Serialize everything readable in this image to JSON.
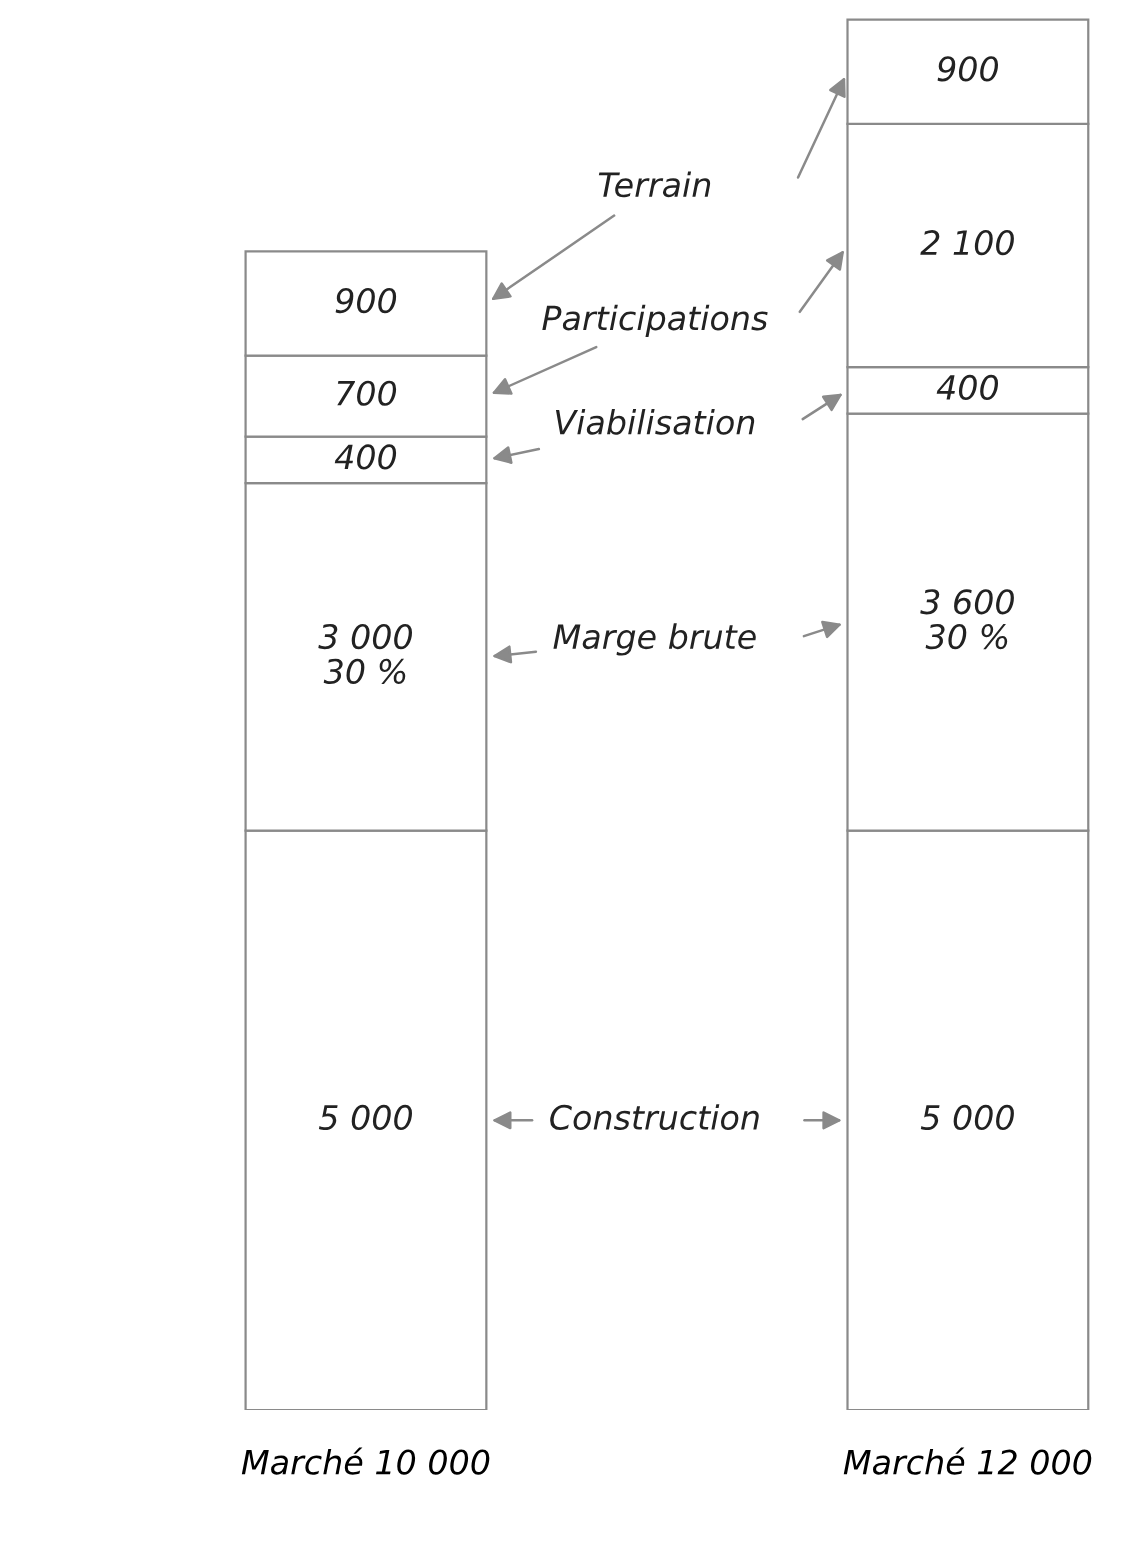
{
  "chart_data": {
    "type": "bar",
    "stacked": true,
    "categories": [
      "Marché 10 000",
      "Marché 12 000"
    ],
    "series": [
      {
        "name": "Construction",
        "color": "#ffffff",
        "values": [
          5000,
          5000
        ],
        "value_labels": [
          "5 000",
          "5 000"
        ]
      },
      {
        "name": "Marge brute",
        "color": "#ffffff",
        "values": [
          3000,
          3600
        ],
        "value_labels": [
          "3 000\n30 %",
          "3 600\n30 %"
        ]
      },
      {
        "name": "Viabilisation",
        "color": "#ffffff",
        "values": [
          400,
          400
        ],
        "value_labels": [
          "400",
          "400"
        ]
      },
      {
        "name": "Participations",
        "color": "#ffffff",
        "values": [
          700,
          2100
        ],
        "value_labels": [
          "700",
          "2 100"
        ]
      },
      {
        "name": "Terrain",
        "color": "#ffffff",
        "values": [
          900,
          900
        ],
        "value_labels": [
          "900",
          "900"
        ]
      }
    ],
    "legend": "center"
  }
}
